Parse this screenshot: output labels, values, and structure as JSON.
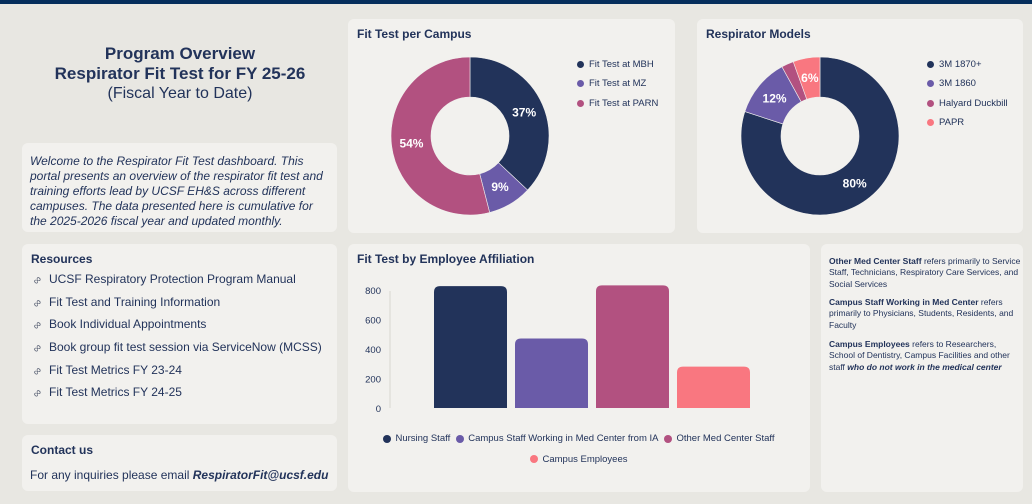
{
  "colors": {
    "navy": "#22335a",
    "purple": "#6a5ba8",
    "magenta": "#b25180",
    "coral": "#f97780",
    "topbar": "#052e5c",
    "card_bg": "#f2f1ee",
    "page_bg": "#e8e7e2"
  },
  "header": {
    "title_line1": "Program Overview",
    "title_line2": "Respirator Fit Test for FY 25-26",
    "subtitle": "(Fiscal Year to Date)"
  },
  "welcome": {
    "text": "Welcome to the Respirator Fit Test dashboard. This portal presents an overview of the respirator fit test and training efforts lead by UCSF EH&S across different campuses. The data presented here is cumulative for the 2025-2026 fiscal year and updated monthly."
  },
  "resources": {
    "title": "Resources",
    "link_icon": "link-icon",
    "items": [
      {
        "label": "UCSF Respiratory Protection Program Manual"
      },
      {
        "label": "Fit Test and Training Information"
      },
      {
        "label": "Book Individual Appointments"
      },
      {
        "label": "Book group fit test session via ServiceNow (MCSS)"
      },
      {
        "label": "Fit Test Metrics FY 23-24"
      },
      {
        "label": "Fit Test Metrics FY 24-25"
      }
    ]
  },
  "contact": {
    "title": "Contact us",
    "text": "For any inquiries please email ",
    "email": "RespiratorFit@ucsf.edu"
  },
  "notes": {
    "items": [
      {
        "term": "Other Med Center Staff",
        "text": " refers primarily to Service Staff, Technicians, Respiratory Care Services, and Social Services",
        "italic_tail": ""
      },
      {
        "term": "Campus Staff Working in Med Center",
        "text": " refers primarily to Physicians, Students, Residents, and Faculty",
        "italic_tail": ""
      },
      {
        "term": "Campus Employees",
        "text": " refers to Researchers, School of Dentistry, Campus Facilities and other staff ",
        "italic_tail": "who do not work in the medical center"
      }
    ]
  },
  "chart_data": [
    {
      "type": "pie",
      "title": "Fit Test per Campus",
      "labels": [
        "Fit Test at MBH",
        "Fit Test at MZ",
        "Fit Test at PARN"
      ],
      "values": [
        37,
        9,
        54
      ],
      "data_labels": [
        "37%",
        "9%",
        "54%"
      ],
      "colors": [
        "#22335a",
        "#6a5ba8",
        "#b25180"
      ],
      "legend": "right"
    },
    {
      "type": "pie",
      "title": "Respirator Models",
      "labels": [
        "3M 1870+",
        "3M 1860",
        "Halyard Duckbill",
        "PAPR"
      ],
      "values": [
        80,
        12,
        2.5,
        5.5
      ],
      "data_labels": [
        "80%",
        "12%",
        "",
        "6%"
      ],
      "colors": [
        "#22335a",
        "#6a5ba8",
        "#b25180",
        "#f97780"
      ],
      "legend": "right"
    },
    {
      "type": "bar",
      "title": "Fit Test by Employee Affiliation",
      "categories": [
        "Nursing Staff",
        "Campus Staff Working in Med Center from IA",
        "Other Med Center Staff",
        "Campus Employees"
      ],
      "values": [
        825,
        470,
        830,
        280
      ],
      "colors": [
        "#22335a",
        "#6a5ba8",
        "#b25180",
        "#f97780"
      ],
      "yticks": [
        0,
        200,
        400,
        600,
        800
      ],
      "ylim": [
        0,
        900
      ],
      "xlabel": "",
      "ylabel": "",
      "grid": false,
      "legend": "bottom"
    }
  ]
}
